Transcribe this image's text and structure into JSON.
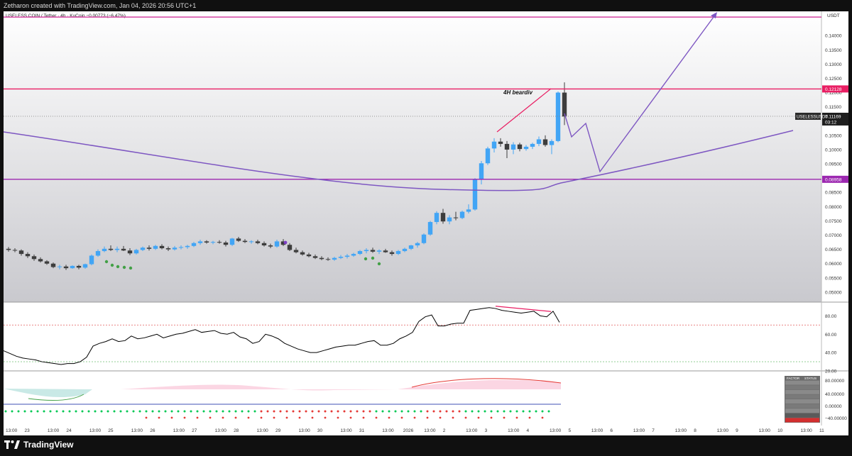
{
  "topbar": {
    "credit": "Zetharon created with TradingView.com, Jan 04, 2026 20:56 UTC+1"
  },
  "header": {
    "symbol_line": "USELESS COIN / Tether · 4h · KuCoin  −0.00773 (−6.47%)",
    "currency": "USDT"
  },
  "footer": {
    "brand": "TradingView"
  },
  "colors": {
    "up": "#42a5f5",
    "down": "#3d3d3d",
    "resistance": "#e91e63",
    "support": "#9c27b0",
    "curve": "#7e57c2",
    "target_arrow": "#7e57c2",
    "rsi_line": "#000000",
    "divergence": "#e91e63"
  },
  "chart_data": {
    "type": "candlestick",
    "symbol": "USELESS COIN / Tether",
    "timeframe": "4h",
    "exchange": "KuCoin",
    "change": "−0.00773 (−6.47%)",
    "currency": "USDT",
    "y_ticks": [
      "0.14000",
      "0.13500",
      "0.13000",
      "0.12500",
      "0.12000",
      "0.11500",
      "0.11000",
      "0.10500",
      "0.10000",
      "0.09500",
      "0.09000",
      "0.08500",
      "0.08000",
      "0.07500",
      "0.07000",
      "0.06500",
      "0.06000",
      "0.05500",
      "0.05000"
    ],
    "ylim": [
      0.0465,
      0.1485
    ],
    "x_ticks": [
      "13:00",
      "23",
      "13:00",
      "24",
      "13:00",
      "25",
      "13:00",
      "26",
      "13:00",
      "27",
      "13:00",
      "28",
      "13:00",
      "29",
      "13:00",
      "30",
      "13:00",
      "31",
      "13:00",
      "2026",
      "13:00",
      "2",
      "13:00",
      "3",
      "13:00",
      "4",
      "13:00",
      "5",
      "13:00",
      "6",
      "13:00",
      "7",
      "13:00",
      "8",
      "13:00",
      "9",
      "13:00",
      "10",
      "13:00",
      "11"
    ],
    "ohlc": [
      [
        0.0652,
        0.0658,
        0.0642,
        0.0648
      ],
      [
        0.0648,
        0.0654,
        0.064,
        0.0646
      ],
      [
        0.0646,
        0.065,
        0.0628,
        0.0634
      ],
      [
        0.0634,
        0.064,
        0.062,
        0.0626
      ],
      [
        0.0626,
        0.0632,
        0.061,
        0.0616
      ],
      [
        0.0616,
        0.0622,
        0.0604,
        0.0608
      ],
      [
        0.0608,
        0.0612,
        0.0596,
        0.06
      ],
      [
        0.06,
        0.0604,
        0.0584,
        0.0588
      ],
      [
        0.0588,
        0.0596,
        0.058,
        0.059
      ],
      [
        0.059,
        0.0596,
        0.0578,
        0.0584
      ],
      [
        0.0584,
        0.0594,
        0.0582,
        0.0592
      ],
      [
        0.0592,
        0.0596,
        0.058,
        0.0586
      ],
      [
        0.0586,
        0.06,
        0.0582,
        0.0598
      ],
      [
        0.0598,
        0.0632,
        0.0594,
        0.0628
      ],
      [
        0.0628,
        0.065,
        0.0624,
        0.0644
      ],
      [
        0.0644,
        0.066,
        0.064,
        0.0652
      ],
      [
        0.0652,
        0.0664,
        0.0644,
        0.0648
      ],
      [
        0.0648,
        0.066,
        0.064,
        0.0652
      ],
      [
        0.0652,
        0.0662,
        0.0644,
        0.0646
      ],
      [
        0.0646,
        0.0654,
        0.063,
        0.0636
      ],
      [
        0.0636,
        0.0652,
        0.0632,
        0.0648
      ],
      [
        0.0648,
        0.066,
        0.0644,
        0.0656
      ],
      [
        0.0656,
        0.0664,
        0.0646,
        0.0652
      ],
      [
        0.0652,
        0.0666,
        0.0648,
        0.0662
      ],
      [
        0.0662,
        0.0668,
        0.065,
        0.0654
      ],
      [
        0.0654,
        0.066,
        0.0644,
        0.065
      ],
      [
        0.065,
        0.0662,
        0.0646,
        0.0656
      ],
      [
        0.0656,
        0.0664,
        0.065,
        0.0658
      ],
      [
        0.0658,
        0.0666,
        0.0652,
        0.0662
      ],
      [
        0.0662,
        0.0676,
        0.0658,
        0.0672
      ],
      [
        0.0672,
        0.0684,
        0.0666,
        0.0678
      ],
      [
        0.0678,
        0.0682,
        0.067,
        0.0674
      ],
      [
        0.0674,
        0.068,
        0.0668,
        0.0676
      ],
      [
        0.0676,
        0.0682,
        0.067,
        0.0674
      ],
      [
        0.0674,
        0.068,
        0.066,
        0.0666
      ],
      [
        0.0666,
        0.069,
        0.0662,
        0.0688
      ],
      [
        0.0688,
        0.0694,
        0.0676,
        0.068
      ],
      [
        0.068,
        0.0686,
        0.0672,
        0.0676
      ],
      [
        0.0676,
        0.0682,
        0.067,
        0.0678
      ],
      [
        0.0678,
        0.0684,
        0.0668,
        0.0672
      ],
      [
        0.0672,
        0.0678,
        0.066,
        0.0664
      ],
      [
        0.0664,
        0.067,
        0.0654,
        0.066
      ],
      [
        0.066,
        0.0684,
        0.0656,
        0.0678
      ],
      [
        0.0678,
        0.0686,
        0.0662,
        0.0666
      ],
      [
        0.0666,
        0.0672,
        0.0644,
        0.0648
      ],
      [
        0.0648,
        0.0656,
        0.0636,
        0.064
      ],
      [
        0.064,
        0.0646,
        0.0628,
        0.0632
      ],
      [
        0.0632,
        0.0638,
        0.0622,
        0.0626
      ],
      [
        0.0626,
        0.0632,
        0.0616,
        0.062
      ],
      [
        0.062,
        0.0626,
        0.0612,
        0.0616
      ],
      [
        0.0616,
        0.0622,
        0.061,
        0.0614
      ],
      [
        0.0614,
        0.0624,
        0.061,
        0.062
      ],
      [
        0.062,
        0.063,
        0.0616,
        0.0624
      ],
      [
        0.0624,
        0.0634,
        0.0618,
        0.0628
      ],
      [
        0.0628,
        0.0638,
        0.0624,
        0.0634
      ],
      [
        0.0634,
        0.0648,
        0.063,
        0.0644
      ],
      [
        0.0644,
        0.0654,
        0.0636,
        0.0648
      ],
      [
        0.0648,
        0.0656,
        0.0638,
        0.0642
      ],
      [
        0.0642,
        0.065,
        0.0634,
        0.0646
      ],
      [
        0.0646,
        0.0652,
        0.0638,
        0.064
      ],
      [
        0.064,
        0.0646,
        0.0628,
        0.0634
      ],
      [
        0.0634,
        0.0648,
        0.063,
        0.0644
      ],
      [
        0.0644,
        0.0656,
        0.064,
        0.0652
      ],
      [
        0.0652,
        0.0666,
        0.0648,
        0.0664
      ],
      [
        0.0664,
        0.0676,
        0.0656,
        0.0672
      ],
      [
        0.0672,
        0.0706,
        0.0668,
        0.0702
      ],
      [
        0.0702,
        0.075,
        0.0698,
        0.0746
      ],
      [
        0.0746,
        0.0784,
        0.0738,
        0.0778
      ],
      [
        0.0778,
        0.0792,
        0.074,
        0.0748
      ],
      [
        0.0748,
        0.077,
        0.0738,
        0.0762
      ],
      [
        0.0762,
        0.0782,
        0.0752,
        0.076
      ],
      [
        0.076,
        0.0786,
        0.0756,
        0.0782
      ],
      [
        0.0782,
        0.0808,
        0.0776,
        0.079
      ],
      [
        0.079,
        0.09,
        0.0786,
        0.0896
      ],
      [
        0.0896,
        0.096,
        0.0878,
        0.0952
      ],
      [
        0.0952,
        0.101,
        0.0946,
        0.1004
      ],
      [
        0.1004,
        0.104,
        0.099,
        0.1028
      ],
      [
        0.1028,
        0.104,
        0.101,
        0.102
      ],
      [
        0.102,
        0.103,
        0.097,
        0.1
      ],
      [
        0.1,
        0.1026,
        0.0984,
        0.1018
      ],
      [
        0.1018,
        0.1024,
        0.0994,
        0.1002
      ],
      [
        0.1002,
        0.1016,
        0.0996,
        0.101
      ],
      [
        0.101,
        0.1024,
        0.1002,
        0.102
      ],
      [
        0.102,
        0.1046,
        0.1012,
        0.1036
      ],
      [
        0.1036,
        0.105,
        0.101,
        0.1016
      ],
      [
        0.1016,
        0.1036,
        0.0984,
        0.103
      ],
      [
        0.103,
        0.1204,
        0.1026,
        0.12
      ],
      [
        0.12,
        0.1236,
        0.1086,
        0.1116
      ]
    ],
    "price_labels": {
      "resistance": "0.12128",
      "support": "0.08958",
      "current_symbol": "USELESSUSDT",
      "current_price": "0.11169",
      "countdown": "03:12"
    },
    "levels": {
      "resistance": 0.12128,
      "support": 0.08958,
      "target_top": 0.1465
    },
    "annotation": "4H beardiv",
    "rsi": {
      "y_ticks": [
        "80.00",
        "60.00",
        "40.00",
        "20.00"
      ],
      "ylim": [
        20,
        95
      ],
      "overbought": 70,
      "oversold": 30,
      "values": [
        42,
        39,
        36,
        34,
        33,
        32,
        30,
        29,
        28,
        27,
        28,
        28,
        30,
        35,
        47,
        50,
        52,
        55,
        52,
        53,
        58,
        55,
        56,
        58,
        60,
        56,
        58,
        60,
        61,
        63,
        65,
        62,
        63,
        64,
        61,
        60,
        62,
        57,
        55,
        50,
        52,
        60,
        58,
        55,
        50,
        47,
        44,
        42,
        40,
        40,
        42,
        44,
        46,
        47,
        48,
        48,
        50,
        52,
        53,
        48,
        48,
        50,
        55,
        58,
        62,
        74,
        79,
        81,
        69,
        69,
        71,
        72,
        72,
        86,
        87,
        88,
        89,
        88,
        86,
        85,
        84,
        83,
        84,
        85,
        80,
        79,
        85,
        73
      ],
      "divergence_from": 89,
      "divergence_to": 84
    },
    "oscillator": {
      "y_ticks": [
        "80.00000",
        "40.00000",
        "0.00000",
        "−40.00000"
      ],
      "table_header": [
        "FACTOR",
        "STATUS"
      ],
      "table_rows": 9
    }
  }
}
